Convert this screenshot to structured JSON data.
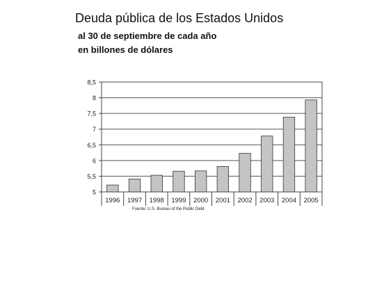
{
  "chart_data": {
    "type": "bar",
    "title": "Deuda pública de los Estados Unidos",
    "subtitle_lines": [
      "al 30 de septiembre de cada año",
      "en billones de dólares"
    ],
    "source": "Fuente: U.S. Bureau of the Public Debt",
    "categories": [
      "1996",
      "1997",
      "1998",
      "1999",
      "2000",
      "2001",
      "2002",
      "2003",
      "2004",
      "2005"
    ],
    "values": [
      5.22,
      5.41,
      5.53,
      5.66,
      5.67,
      5.81,
      6.23,
      6.78,
      7.38,
      7.93
    ],
    "y_ticks": [
      "5",
      "5,5",
      "6",
      "6,5",
      "7",
      "7,5",
      "8",
      "8,5"
    ],
    "ylim": [
      5,
      8.5
    ],
    "grid": true,
    "bar_color": "#c4c4c4"
  }
}
